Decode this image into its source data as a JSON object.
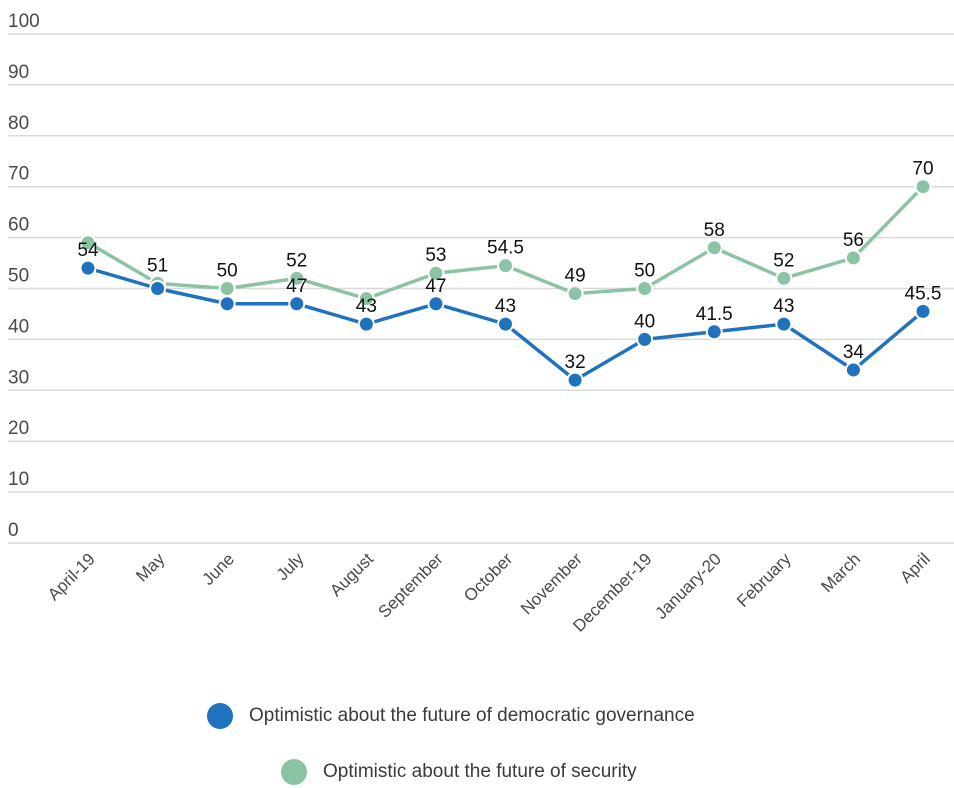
{
  "chart_data": {
    "type": "line",
    "title": "",
    "xlabel": "",
    "ylabel": "",
    "ylim": [
      0,
      100
    ],
    "yticks": [
      "0",
      "10",
      "20",
      "30",
      "40",
      "50",
      "60",
      "70",
      "80",
      "90",
      "100"
    ],
    "grid": true,
    "legend_placement": "bottom",
    "categories": [
      "April-19",
      "May",
      "June",
      "July",
      "August",
      "September",
      "October",
      "November",
      "December-19",
      "January-20",
      "February",
      "March",
      "April"
    ],
    "series": [
      {
        "name": "Optimistic about the future of democratic governance",
        "color": "#1f73be",
        "values": [
          54,
          50,
          47,
          47,
          43,
          47,
          43,
          32,
          40,
          41.5,
          43,
          34,
          45.5
        ],
        "labels": [
          "54",
          "",
          "",
          "47",
          "43",
          "47",
          "43",
          "32",
          "40",
          "41.5",
          "43",
          "34",
          "45.5"
        ]
      },
      {
        "name": "Optimistic about the future of security",
        "color": "#8cc3a4",
        "values": [
          59,
          51,
          50,
          52,
          48,
          53,
          54.5,
          49,
          50,
          58,
          52,
          56,
          70
        ],
        "labels": [
          "",
          "51",
          "50",
          "52",
          "",
          "53",
          "54.5",
          "49",
          "50",
          "58",
          "52",
          "56",
          "70"
        ]
      }
    ]
  }
}
